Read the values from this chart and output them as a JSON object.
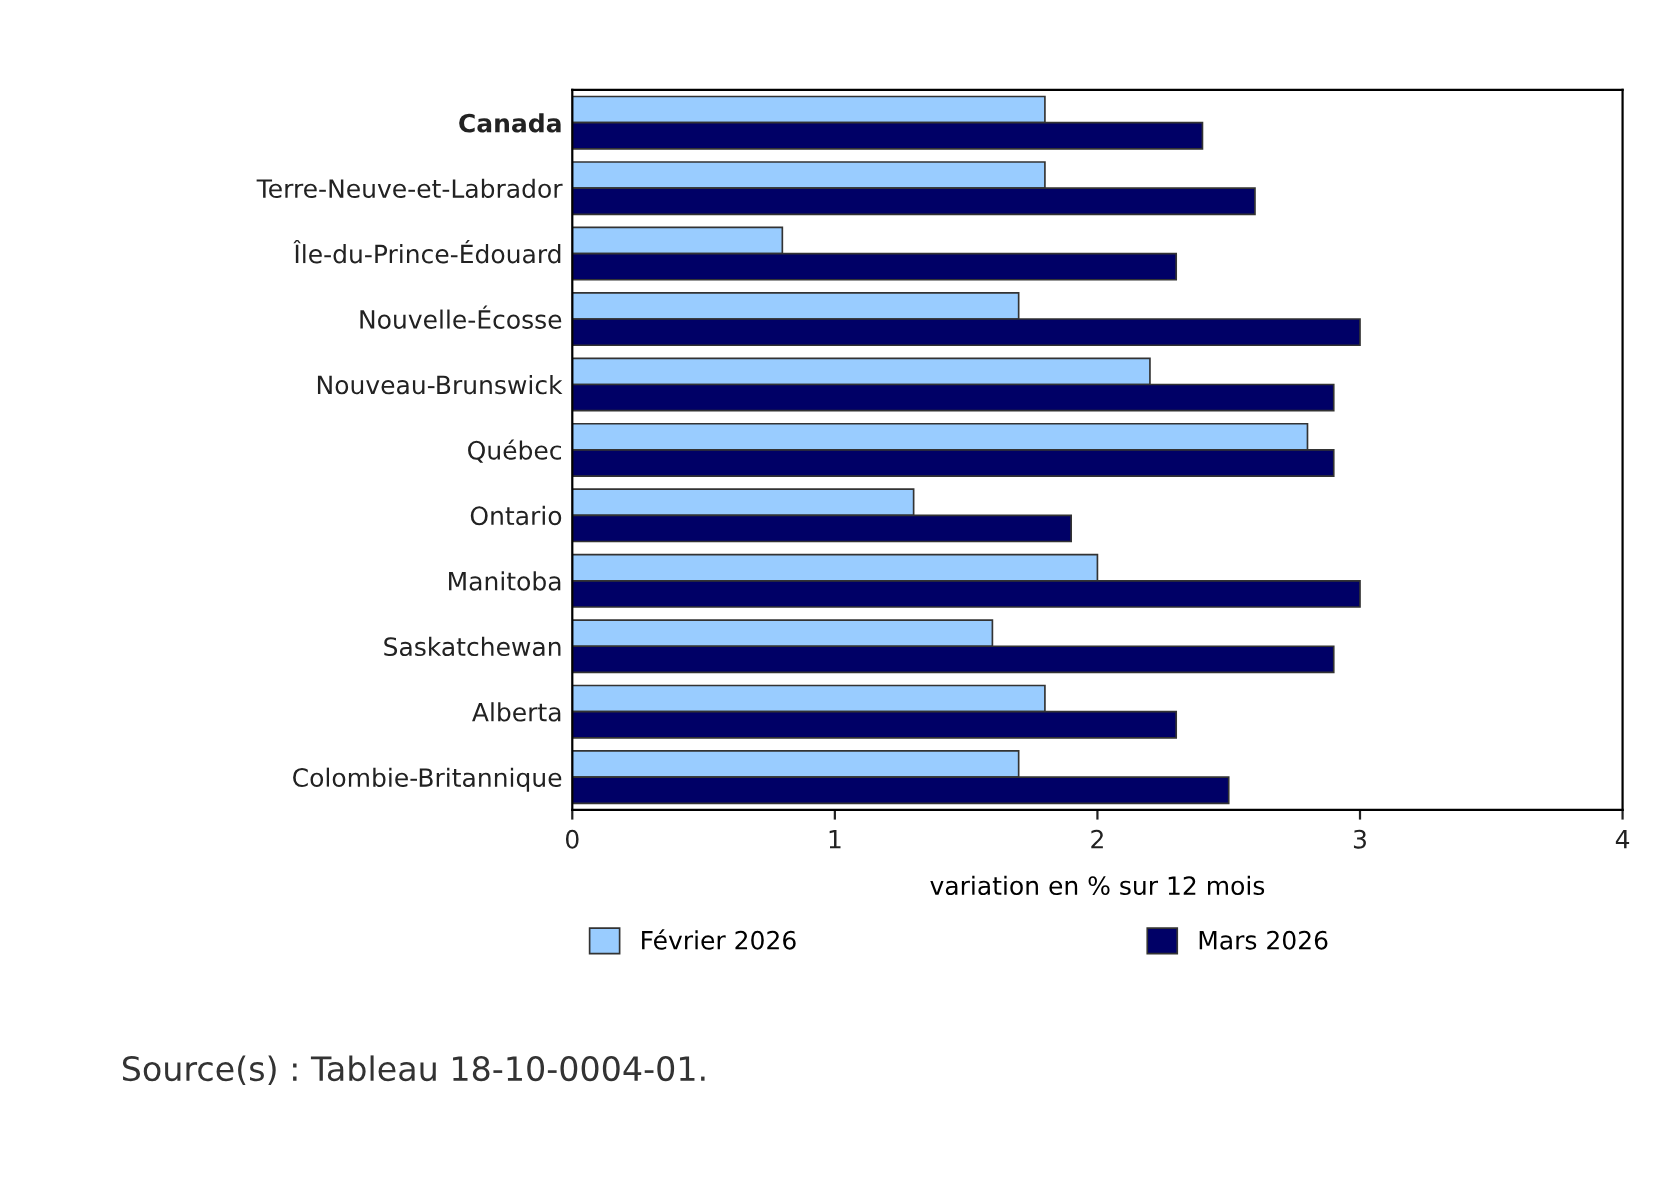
{
  "chart_data": {
    "type": "bar",
    "orientation": "horizontal",
    "xlabel": "variation en % sur 12 mois",
    "categories": [
      "Canada",
      "Terre-Neuve-et-Labrador",
      "Île-du-Prince-Édouard",
      "Nouvelle-Écosse",
      "Nouveau-Brunswick",
      "Québec",
      "Ontario",
      "Manitoba",
      "Saskatchewan",
      "Alberta",
      "Colombie-Britannique"
    ],
    "series": [
      {
        "name": "Février 2026",
        "color": "#99ccff",
        "values": [
          1.8,
          1.8,
          0.8,
          1.7,
          2.2,
          2.8,
          1.3,
          2.0,
          1.6,
          1.8,
          1.7
        ]
      },
      {
        "name": "Mars 2026",
        "color": "#000066",
        "values": [
          2.4,
          2.6,
          2.3,
          3.0,
          2.9,
          2.9,
          1.9,
          3.0,
          2.9,
          2.3,
          2.5
        ]
      }
    ],
    "xlim": [
      0,
      4
    ],
    "xticks": [
      0,
      1,
      2,
      3,
      4
    ],
    "grid": false,
    "legend": "bottom",
    "annotations": [
      "Source(s) : Tableau 18-10-0004-01."
    ]
  }
}
